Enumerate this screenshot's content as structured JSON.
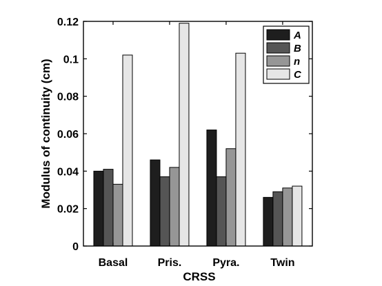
{
  "chart_data": {
    "type": "bar",
    "xlabel": "CRSS",
    "ylabel": "Modulus of continuity (cm)",
    "categories": [
      "Basal",
      "Pris.",
      "Pyra.",
      "Twin"
    ],
    "ylim": [
      0,
      0.12
    ],
    "yticks": [
      0,
      0.02,
      0.04,
      0.06,
      0.08,
      0.1,
      0.12
    ],
    "ytick_labels": [
      "0",
      "0.02",
      "0.04",
      "0.06",
      "0.08",
      "0.1",
      "0.12"
    ],
    "grid": false,
    "legend_position": "top-right",
    "series": [
      {
        "name": "A",
        "color": "#1e1e1e",
        "values": [
          0.04,
          0.046,
          0.062,
          0.026
        ]
      },
      {
        "name": "B",
        "color": "#555555",
        "values": [
          0.041,
          0.037,
          0.037,
          0.029
        ]
      },
      {
        "name": "n",
        "color": "#969696",
        "values": [
          0.033,
          0.042,
          0.052,
          0.031
        ]
      },
      {
        "name": "C",
        "color": "#e6e6e6",
        "values": [
          0.102,
          0.119,
          0.103,
          0.032
        ]
      }
    ]
  }
}
